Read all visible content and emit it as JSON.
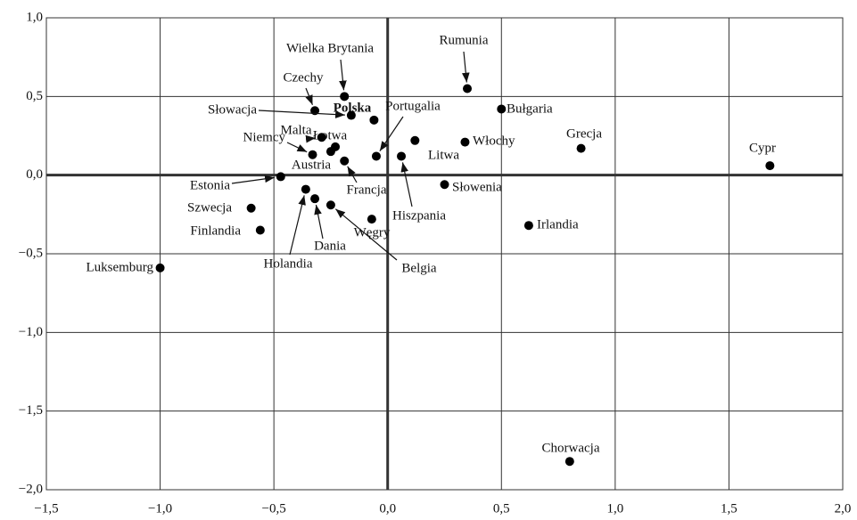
{
  "chart_data": {
    "type": "scatter",
    "labels": [
      "Cypr",
      "Chorwacja",
      "Luksemburg",
      "Irlandia",
      "Grecja",
      "Bułgaria",
      "Rumunia",
      "Włochy",
      "Słowenia",
      "Litwa",
      "Hiszpania",
      "Portugalia",
      "Polska",
      "Węgry",
      "Wielka Brytania",
      "Czechy",
      "Słowacja",
      "Łotwa",
      "Malta",
      "Niemcy",
      "Austria",
      "Francja",
      "Estonia",
      "Szwecja",
      "Finlandia",
      "Holandia",
      "Dania",
      "Belgia"
    ],
    "x": [
      1.68,
      0.8,
      -1.0,
      0.62,
      0.85,
      0.5,
      0.35,
      0.34,
      0.25,
      0.12,
      0.06,
      -0.05,
      -0.06,
      -0.07,
      -0.19,
      -0.32,
      -0.16,
      -0.23,
      -0.29,
      -0.33,
      -0.25,
      -0.19,
      -0.47,
      -0.6,
      -0.56,
      -0.36,
      -0.32,
      -0.25
    ],
    "values": [
      0.06,
      -1.82,
      -0.59,
      -0.32,
      0.17,
      0.42,
      0.55,
      0.21,
      -0.06,
      0.22,
      0.12,
      0.12,
      0.35,
      -0.28,
      0.5,
      0.41,
      0.38,
      0.18,
      0.24,
      0.13,
      0.15,
      0.09,
      -0.01,
      -0.21,
      -0.35,
      -0.09,
      -0.15,
      -0.19
    ],
    "color": "#000000",
    "xlim": [
      -1.5,
      2.0
    ],
    "ylim": [
      -2.0,
      1.0
    ],
    "xticks": [
      {
        "value": -1.5,
        "label": "−1,5"
      },
      {
        "value": -1.0,
        "label": "−1,0"
      },
      {
        "value": -0.5,
        "label": "−0,5"
      },
      {
        "value": 0,
        "label": "0,0"
      },
      {
        "value": 0.5,
        "label": "0,5"
      },
      {
        "value": 1.0,
        "label": "1,0"
      },
      {
        "value": 1.5,
        "label": "1,5"
      },
      {
        "value": 2.0,
        "label": "2,0"
      }
    ],
    "yticks": [
      {
        "value": -2.0,
        "label": "−2,0"
      },
      {
        "value": -1.5,
        "label": "−1,5"
      },
      {
        "value": -1.0,
        "label": "−1,0"
      },
      {
        "value": -0.5,
        "label": "−0,5"
      },
      {
        "value": 0,
        "label": "0,0"
      },
      {
        "value": 0.5,
        "label": "0,5"
      },
      {
        "value": 1.0,
        "label": "1,0"
      }
    ],
    "grid": true
  }
}
